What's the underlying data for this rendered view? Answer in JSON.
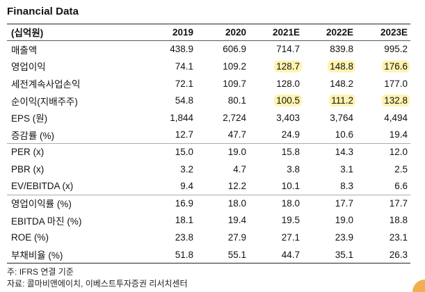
{
  "title": "Financial Data",
  "columns": [
    "(십억원)",
    "2019",
    "2020",
    "2021E",
    "2022E",
    "2023E"
  ],
  "rows": [
    {
      "label": "매출액",
      "values": [
        "438.9",
        "606.9",
        "714.7",
        "839.8",
        "995.2"
      ],
      "highlight": [
        false,
        false,
        false,
        false,
        false
      ]
    },
    {
      "label": "영업이익",
      "values": [
        "74.1",
        "109.2",
        "128.7",
        "148.8",
        "176.6"
      ],
      "highlight": [
        false,
        false,
        true,
        true,
        true
      ]
    },
    {
      "label": "세전계속사업손익",
      "values": [
        "72.1",
        "109.7",
        "128.0",
        "148.2",
        "177.0"
      ],
      "highlight": [
        false,
        false,
        false,
        false,
        false
      ]
    },
    {
      "label": "순이익(지배주주)",
      "values": [
        "54.8",
        "80.1",
        "100.5",
        "111.2",
        "132.8"
      ],
      "highlight": [
        false,
        false,
        true,
        true,
        true
      ]
    },
    {
      "label": "EPS (원)",
      "values": [
        "1,844",
        "2,724",
        "3,403",
        "3,764",
        "4,494"
      ],
      "highlight": [
        false,
        false,
        false,
        false,
        false
      ]
    },
    {
      "label": "증감률 (%)",
      "values": [
        "12.7",
        "47.7",
        "24.9",
        "10.6",
        "19.4"
      ],
      "highlight": [
        false,
        false,
        false,
        false,
        false
      ]
    },
    {
      "label": "PER (x)",
      "values": [
        "15.0",
        "19.0",
        "15.8",
        "14.3",
        "12.0"
      ],
      "highlight": [
        false,
        false,
        false,
        false,
        false
      ]
    },
    {
      "label": "PBR (x)",
      "values": [
        "3.2",
        "4.7",
        "3.8",
        "3.1",
        "2.5"
      ],
      "highlight": [
        false,
        false,
        false,
        false,
        false
      ]
    },
    {
      "label": "EV/EBITDA (x)",
      "values": [
        "9.4",
        "12.2",
        "10.1",
        "8.3",
        "6.6"
      ],
      "highlight": [
        false,
        false,
        false,
        false,
        false
      ]
    },
    {
      "label": "영업이익률 (%)",
      "values": [
        "16.9",
        "18.0",
        "18.0",
        "17.7",
        "17.7"
      ],
      "highlight": [
        false,
        false,
        false,
        false,
        false
      ]
    },
    {
      "label": "EBITDA 마진 (%)",
      "values": [
        "18.1",
        "19.4",
        "19.5",
        "19.0",
        "18.8"
      ],
      "highlight": [
        false,
        false,
        false,
        false,
        false
      ]
    },
    {
      "label": "ROE (%)",
      "values": [
        "23.8",
        "27.9",
        "27.1",
        "23.9",
        "23.1"
      ],
      "highlight": [
        false,
        false,
        false,
        false,
        false
      ]
    },
    {
      "label": "부채비율 (%)",
      "values": [
        "51.8",
        "55.1",
        "44.7",
        "35.1",
        "26.3"
      ],
      "highlight": [
        false,
        false,
        false,
        false,
        false
      ]
    }
  ],
  "footnotes": {
    "note": "주: IFRS 연결 기준",
    "source": "자료: 콜마비앤에이치, 이베스트투자증권 리서치센터"
  },
  "colors": {
    "highlight": "#fff3b0"
  }
}
